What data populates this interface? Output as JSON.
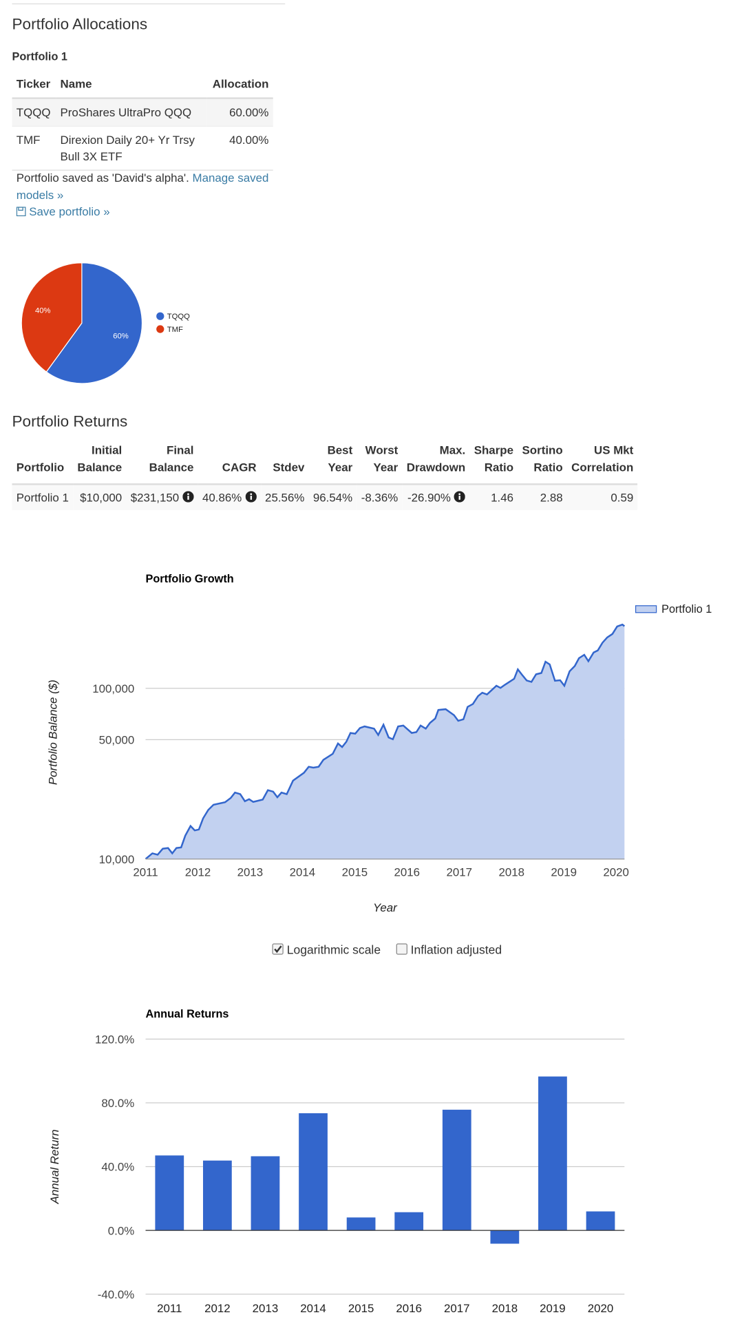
{
  "allocations": {
    "title": "Portfolio Allocations",
    "portfolio": "Portfolio 1",
    "columns": [
      "Ticker",
      "Name",
      "Allocation"
    ],
    "rows": [
      [
        "TQQQ",
        "ProShares UltraPro QQQ",
        "60.00%"
      ],
      [
        "TMF",
        "Direxion Daily 20+ Yr Trsy Bull 3X ETF",
        "40.00%"
      ]
    ],
    "note": "Portfolio saved as 'David's alpha'.",
    "manage_link": "Manage saved models »",
    "save_link": "Save portfolio »"
  },
  "returns": {
    "title": "Portfolio Returns",
    "columns": [
      [
        "Portfolio"
      ],
      [
        "Initial",
        "Balance"
      ],
      [
        "Final",
        "Balance"
      ],
      [
        "CAGR"
      ],
      [
        "Stdev"
      ],
      [
        "Best",
        "Year"
      ],
      [
        "Worst",
        "Year"
      ],
      [
        "Max.",
        "Drawdown"
      ],
      [
        "Sharpe",
        "Ratio"
      ],
      [
        "Sortino",
        "Ratio"
      ],
      [
        "US Mkt",
        "Correlation"
      ]
    ],
    "rows": [
      [
        "Portfolio 1",
        "$10,000",
        "$231,150",
        "40.86%",
        "25.56%",
        "96.54%",
        "-8.36%",
        "-26.90%",
        "1.46",
        "2.88",
        "0.59"
      ]
    ]
  },
  "controls": {
    "log_scale": {
      "label": "Logarithmic scale",
      "checked": true
    },
    "inflation": {
      "label": "Inflation adjusted",
      "checked": false
    }
  },
  "chart_data": [
    {
      "type": "pie",
      "categories": [
        "TQQQ",
        "TMF"
      ],
      "values": [
        60,
        40
      ],
      "value_labels": [
        "60%",
        "40%"
      ],
      "colors": [
        "#3366cc",
        "#dc3912"
      ]
    },
    {
      "type": "area",
      "title": "Portfolio Growth",
      "x_label": "Year",
      "y_label": "Portfolio Balance ($)",
      "log_scale": true,
      "grid": true,
      "x": [
        2011.0,
        2011.13,
        2011.23,
        2011.33,
        2011.43,
        2011.51,
        2011.59,
        2011.68,
        2011.76,
        2011.86,
        2011.94,
        2012.02,
        2012.1,
        2012.2,
        2012.3,
        2012.52,
        2012.63,
        2012.71,
        2012.81,
        2012.9,
        2012.98,
        2013.06,
        2013.24,
        2013.34,
        2013.44,
        2013.52,
        2013.6,
        2013.7,
        2013.82,
        2014.03,
        2014.12,
        2014.21,
        2014.31,
        2014.4,
        2014.58,
        2014.68,
        2014.76,
        2014.84,
        2014.92,
        2015.01,
        2015.1,
        2015.19,
        2015.37,
        2015.45,
        2015.55,
        2015.65,
        2015.73,
        2015.83,
        2015.93,
        2016.09,
        2016.18,
        2016.26,
        2016.36,
        2016.44,
        2016.54,
        2016.6,
        2016.74,
        2016.9,
        2016.98,
        2017.08,
        2017.16,
        2017.26,
        2017.36,
        2017.44,
        2017.53,
        2017.71,
        2017.79,
        2017.87,
        2018.05,
        2018.12,
        2018.2,
        2018.29,
        2018.38,
        2018.47,
        2018.57,
        2018.65,
        2018.73,
        2018.83,
        2018.93,
        2019.01,
        2019.11,
        2019.21,
        2019.29,
        2019.39,
        2019.47,
        2019.57,
        2019.65,
        2019.74,
        2019.83,
        2019.93,
        2020.02,
        2020.12,
        2020.16
      ],
      "series": [
        {
          "name": "Portfolio 1",
          "color": "#3366cc",
          "fill": "#c2d1f0",
          "values": [
            10000,
            10800,
            10600,
            11500,
            11600,
            10800,
            11600,
            11700,
            13700,
            15600,
            14700,
            14900,
            17300,
            19400,
            20800,
            21500,
            22800,
            24500,
            24000,
            21800,
            22400,
            21600,
            22300,
            25300,
            24800,
            23000,
            24500,
            24000,
            28800,
            32000,
            34700,
            34300,
            34700,
            38100,
            41300,
            47500,
            45300,
            48600,
            54700,
            54200,
            58500,
            59800,
            58000,
            53300,
            61200,
            51500,
            50300,
            59800,
            60500,
            54700,
            55400,
            60500,
            58000,
            62700,
            66500,
            74600,
            75400,
            69600,
            64500,
            65800,
            77800,
            80900,
            90000,
            94200,
            92000,
            103500,
            100500,
            104700,
            113600,
            129000,
            120000,
            111000,
            109000,
            120700,
            122800,
            143000,
            138000,
            110700,
            111500,
            103500,
            125800,
            135000,
            150000,
            157000,
            144000,
            162000,
            166500,
            185000,
            198500,
            208000,
            230000,
            236000,
            231150
          ]
        }
      ],
      "xlim": [
        2011,
        2020.16
      ],
      "xticks": [
        2011,
        2012,
        2013,
        2014,
        2015,
        2016,
        2017,
        2018,
        2019,
        2020
      ],
      "ylim": [
        10000,
        350000
      ],
      "yticks": [
        {
          "value": 10000,
          "label": "10,000"
        },
        {
          "value": 50000,
          "label": "50,000"
        },
        {
          "value": 100000,
          "label": "100,000"
        }
      ]
    },
    {
      "type": "bar",
      "title": "Annual Returns",
      "x_label": "Year",
      "y_label": "Annual Return",
      "grid": true,
      "color": "#3366cc",
      "categories": [
        "2011",
        "2012",
        "2013",
        "2014",
        "2015",
        "2016",
        "2017",
        "2018",
        "2019",
        "2020"
      ],
      "values": [
        47.0,
        43.8,
        46.5,
        73.5,
        8.1,
        11.4,
        75.7,
        -8.36,
        96.54,
        11.9
      ],
      "ylim": [
        -40,
        120
      ],
      "yticks": [
        {
          "value": -40,
          "label": "-40.0%"
        },
        {
          "value": 0,
          "label": "0.0%"
        },
        {
          "value": 40,
          "label": "40.0%"
        },
        {
          "value": 80,
          "label": "80.0%"
        },
        {
          "value": 120,
          "label": "120.0%"
        }
      ]
    }
  ]
}
